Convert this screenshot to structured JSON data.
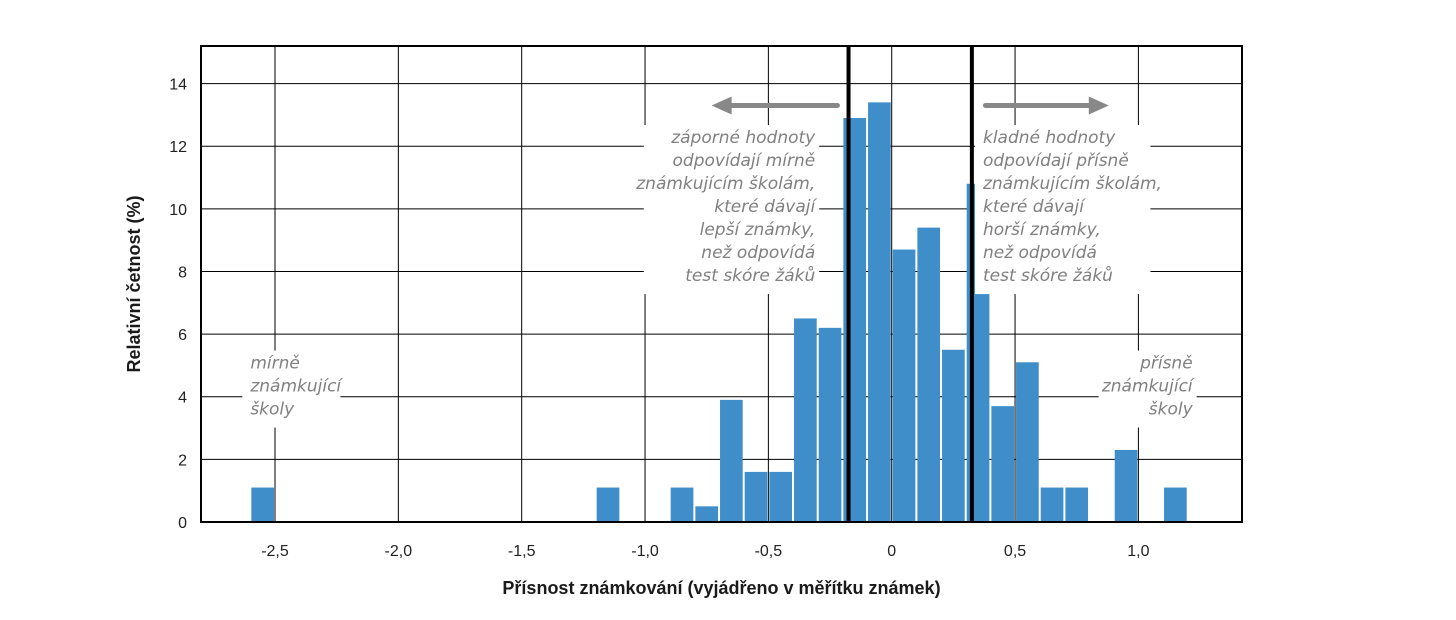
{
  "chart_data": {
    "type": "bar",
    "xlabel": "Přísnost známkování (vyjádřeno v měřítku známek)",
    "ylabel": "Relativní četnost (%)",
    "xlim": [
      -2.8,
      1.42
    ],
    "ylim": [
      0,
      15.2
    ],
    "x_ticks": [
      {
        "value": -2.5,
        "label": "-2,5"
      },
      {
        "value": -2.0,
        "label": "-2,0"
      },
      {
        "value": -1.5,
        "label": "-1,5"
      },
      {
        "value": -1.0,
        "label": "-1,0"
      },
      {
        "value": -0.5,
        "label": "-0,5"
      },
      {
        "value": 0.0,
        "label": "0"
      },
      {
        "value": 0.5,
        "label": "0,5"
      },
      {
        "value": 1.0,
        "label": "1,0"
      }
    ],
    "y_ticks": [
      {
        "value": 0,
        "label": "0"
      },
      {
        "value": 2,
        "label": "2"
      },
      {
        "value": 4,
        "label": "4"
      },
      {
        "value": 6,
        "label": "6"
      },
      {
        "value": 8,
        "label": "8"
      },
      {
        "value": 10,
        "label": "10"
      },
      {
        "value": 12,
        "label": "12"
      },
      {
        "value": 14,
        "label": "14"
      }
    ],
    "grid": true,
    "bin_width": 0.1,
    "color": "#3f8dc9",
    "bars": [
      {
        "x": -2.55,
        "value": 1.1
      },
      {
        "x": -1.15,
        "value": 1.1
      },
      {
        "x": -0.85,
        "value": 1.1
      },
      {
        "x": -0.75,
        "value": 0.5
      },
      {
        "x": -0.65,
        "value": 3.9
      },
      {
        "x": -0.55,
        "value": 1.6
      },
      {
        "x": -0.45,
        "value": 1.6
      },
      {
        "x": -0.35,
        "value": 6.5
      },
      {
        "x": -0.25,
        "value": 6.2
      },
      {
        "x": -0.15,
        "value": 12.9
      },
      {
        "x": -0.05,
        "value": 13.4
      },
      {
        "x": 0.05,
        "value": 8.7
      },
      {
        "x": 0.15,
        "value": 9.4
      },
      {
        "x": 0.25,
        "value": 5.5
      },
      {
        "x": 0.35,
        "value": 10.8
      },
      {
        "x": 0.45,
        "value": 3.7
      },
      {
        "x": 0.55,
        "value": 5.1
      },
      {
        "x": 0.65,
        "value": 1.1
      },
      {
        "x": 0.75,
        "value": 1.1
      },
      {
        "x": 0.95,
        "value": 2.3
      },
      {
        "x": 1.15,
        "value": 1.1
      }
    ],
    "reference_lines": [
      -0.175,
      0.325
    ],
    "arrows": [
      {
        "direction": "left",
        "from": -0.22,
        "to": -0.73,
        "y": 13.3
      },
      {
        "direction": "right",
        "from": 0.38,
        "to": 0.88,
        "y": 13.3
      }
    ],
    "annotations": [
      {
        "id": "left-note",
        "anchor": "end",
        "x": -0.31,
        "y": 12.1,
        "lines": [
          "záporné hodnoty",
          "odpovídají mírně",
          "známkujícím školám,",
          "které dávají",
          "lepší známky,",
          "než odpovídá",
          "test skóre žáků"
        ]
      },
      {
        "id": "right-note",
        "anchor": "start",
        "x": 0.37,
        "y": 12.1,
        "lines": [
          "kladné hodnoty",
          "odpovídají přísně",
          "známkujícím školám,",
          "které dávají",
          "horší známky,",
          "než odpovídá",
          "test skóre žáků"
        ]
      },
      {
        "id": "lenient-label",
        "anchor": "start",
        "x": -2.6,
        "y": 4.9,
        "lines": [
          "mírně",
          "známkující",
          "školy"
        ]
      },
      {
        "id": "strict-label",
        "anchor": "end",
        "x": 1.22,
        "y": 4.9,
        "lines": [
          "přísně",
          "známkující",
          "školy"
        ]
      }
    ]
  }
}
